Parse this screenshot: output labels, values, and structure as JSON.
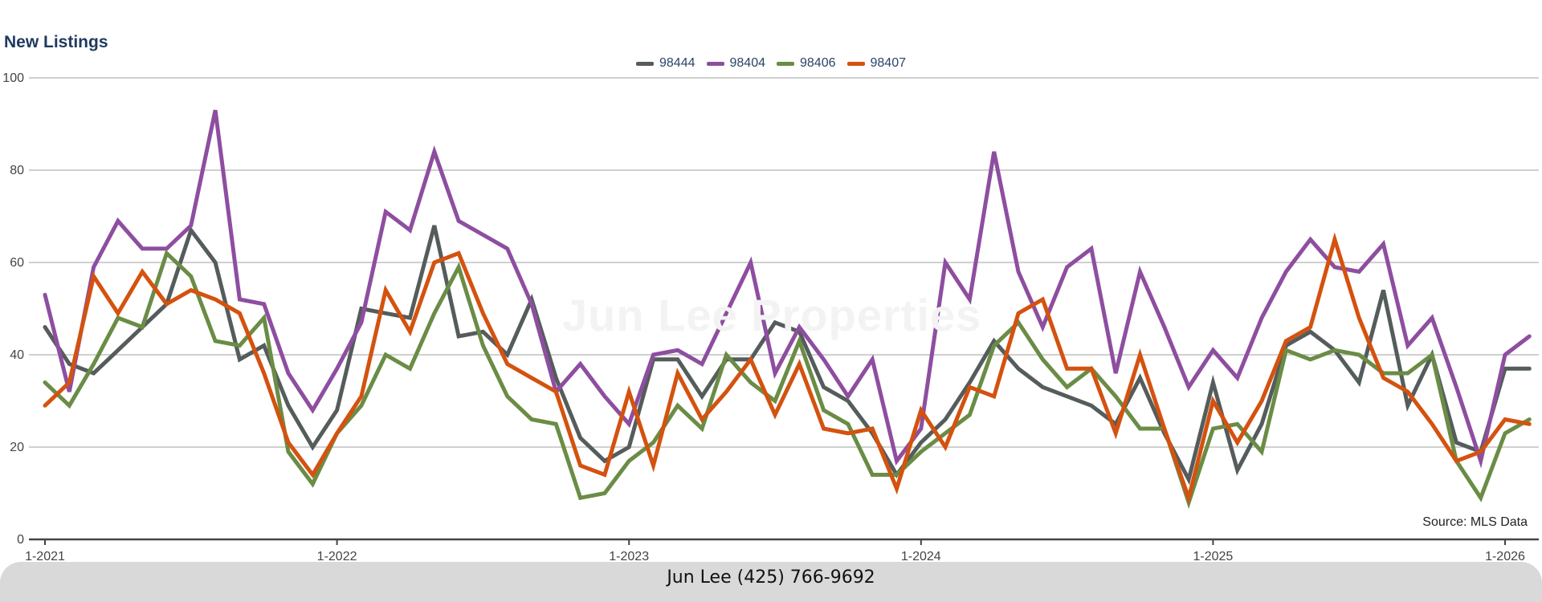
{
  "footer": {
    "contact": "Jun Lee (425) 766-9692"
  },
  "watermark": "Jun Lee Properties",
  "chart_data": {
    "type": "line",
    "title": "New Listings",
    "source": "Source: MLS Data",
    "ylim": [
      0,
      100
    ],
    "yticks": [
      0,
      20,
      40,
      60,
      80,
      100
    ],
    "xticks": [
      "1-2021",
      "1-2022",
      "1-2023",
      "1-2024",
      "1-2025",
      "1-2026"
    ],
    "grid": true,
    "legend_position": "top-center",
    "x": [
      "1-2021",
      "2-2021",
      "3-2021",
      "4-2021",
      "5-2021",
      "6-2021",
      "7-2021",
      "8-2021",
      "9-2021",
      "10-2021",
      "11-2021",
      "12-2021",
      "1-2022",
      "2-2022",
      "3-2022",
      "4-2022",
      "5-2022",
      "6-2022",
      "7-2022",
      "8-2022",
      "9-2022",
      "10-2022",
      "11-2022",
      "12-2022",
      "1-2023",
      "2-2023",
      "3-2023",
      "4-2023",
      "5-2023",
      "6-2023",
      "7-2023",
      "8-2023",
      "9-2023",
      "10-2023",
      "11-2023",
      "12-2023",
      "1-2024",
      "2-2024",
      "3-2024",
      "4-2024",
      "5-2024",
      "6-2024",
      "7-2024",
      "8-2024",
      "9-2024",
      "10-2024",
      "11-2024",
      "12-2024",
      "1-2025",
      "2-2025",
      "3-2025",
      "4-2025",
      "5-2025",
      "6-2025",
      "7-2025",
      "8-2025",
      "9-2025",
      "10-2025",
      "11-2025",
      "12-2025",
      "1-2026",
      "2-2026"
    ],
    "series": [
      {
        "name": "98444",
        "color": "#555c5c",
        "values": [
          46,
          38,
          36,
          41,
          46,
          51,
          67,
          60,
          39,
          42,
          29,
          20,
          28,
          50,
          49,
          48,
          68,
          44,
          45,
          40,
          52,
          35,
          22,
          17,
          20,
          39,
          39,
          31,
          39,
          39,
          47,
          45,
          33,
          30,
          23,
          14,
          21,
          26,
          34,
          43,
          37,
          33,
          31,
          29,
          25,
          35,
          23,
          13,
          34,
          15,
          25,
          42,
          45,
          41,
          34,
          54,
          29,
          40,
          21,
          19,
          37,
          37
        ]
      },
      {
        "name": "98404",
        "color": "#8e4ea0",
        "values": [
          53,
          32,
          59,
          69,
          63,
          63,
          68,
          93,
          52,
          51,
          36,
          28,
          37,
          47,
          71,
          67,
          84,
          69,
          66,
          63,
          51,
          32,
          38,
          31,
          25,
          40,
          41,
          38,
          49,
          60,
          36,
          46,
          39,
          31,
          39,
          17,
          24,
          60,
          52,
          84,
          58,
          46,
          59,
          63,
          36,
          58,
          46,
          33,
          41,
          35,
          48,
          58,
          65,
          59,
          58,
          64,
          42,
          48,
          33,
          17,
          40,
          44
        ]
      },
      {
        "name": "98406",
        "color": "#6a8c45",
        "values": [
          34,
          29,
          38,
          48,
          46,
          62,
          57,
          43,
          42,
          48,
          19,
          12,
          23,
          29,
          40,
          37,
          49,
          59,
          42,
          31,
          26,
          25,
          9,
          10,
          17,
          21,
          29,
          24,
          40,
          34,
          30,
          43,
          28,
          25,
          14,
          14,
          19,
          23,
          27,
          42,
          47,
          39,
          33,
          37,
          31,
          24,
          24,
          8,
          24,
          25,
          19,
          41,
          39,
          41,
          40,
          36,
          36,
          40,
          17,
          9,
          23,
          26
        ]
      },
      {
        "name": "98407",
        "color": "#d4520f",
        "values": [
          29,
          34,
          57,
          49,
          58,
          51,
          54,
          52,
          49,
          36,
          21,
          14,
          23,
          31,
          54,
          45,
          60,
          62,
          49,
          38,
          35,
          32,
          16,
          14,
          32,
          16,
          36,
          26,
          32,
          39,
          27,
          38,
          24,
          23,
          24,
          11,
          28,
          20,
          33,
          31,
          49,
          52,
          37,
          37,
          23,
          40,
          24,
          9,
          30,
          21,
          30,
          43,
          46,
          65,
          48,
          35,
          32,
          25,
          17,
          19,
          26,
          25
        ]
      }
    ]
  }
}
